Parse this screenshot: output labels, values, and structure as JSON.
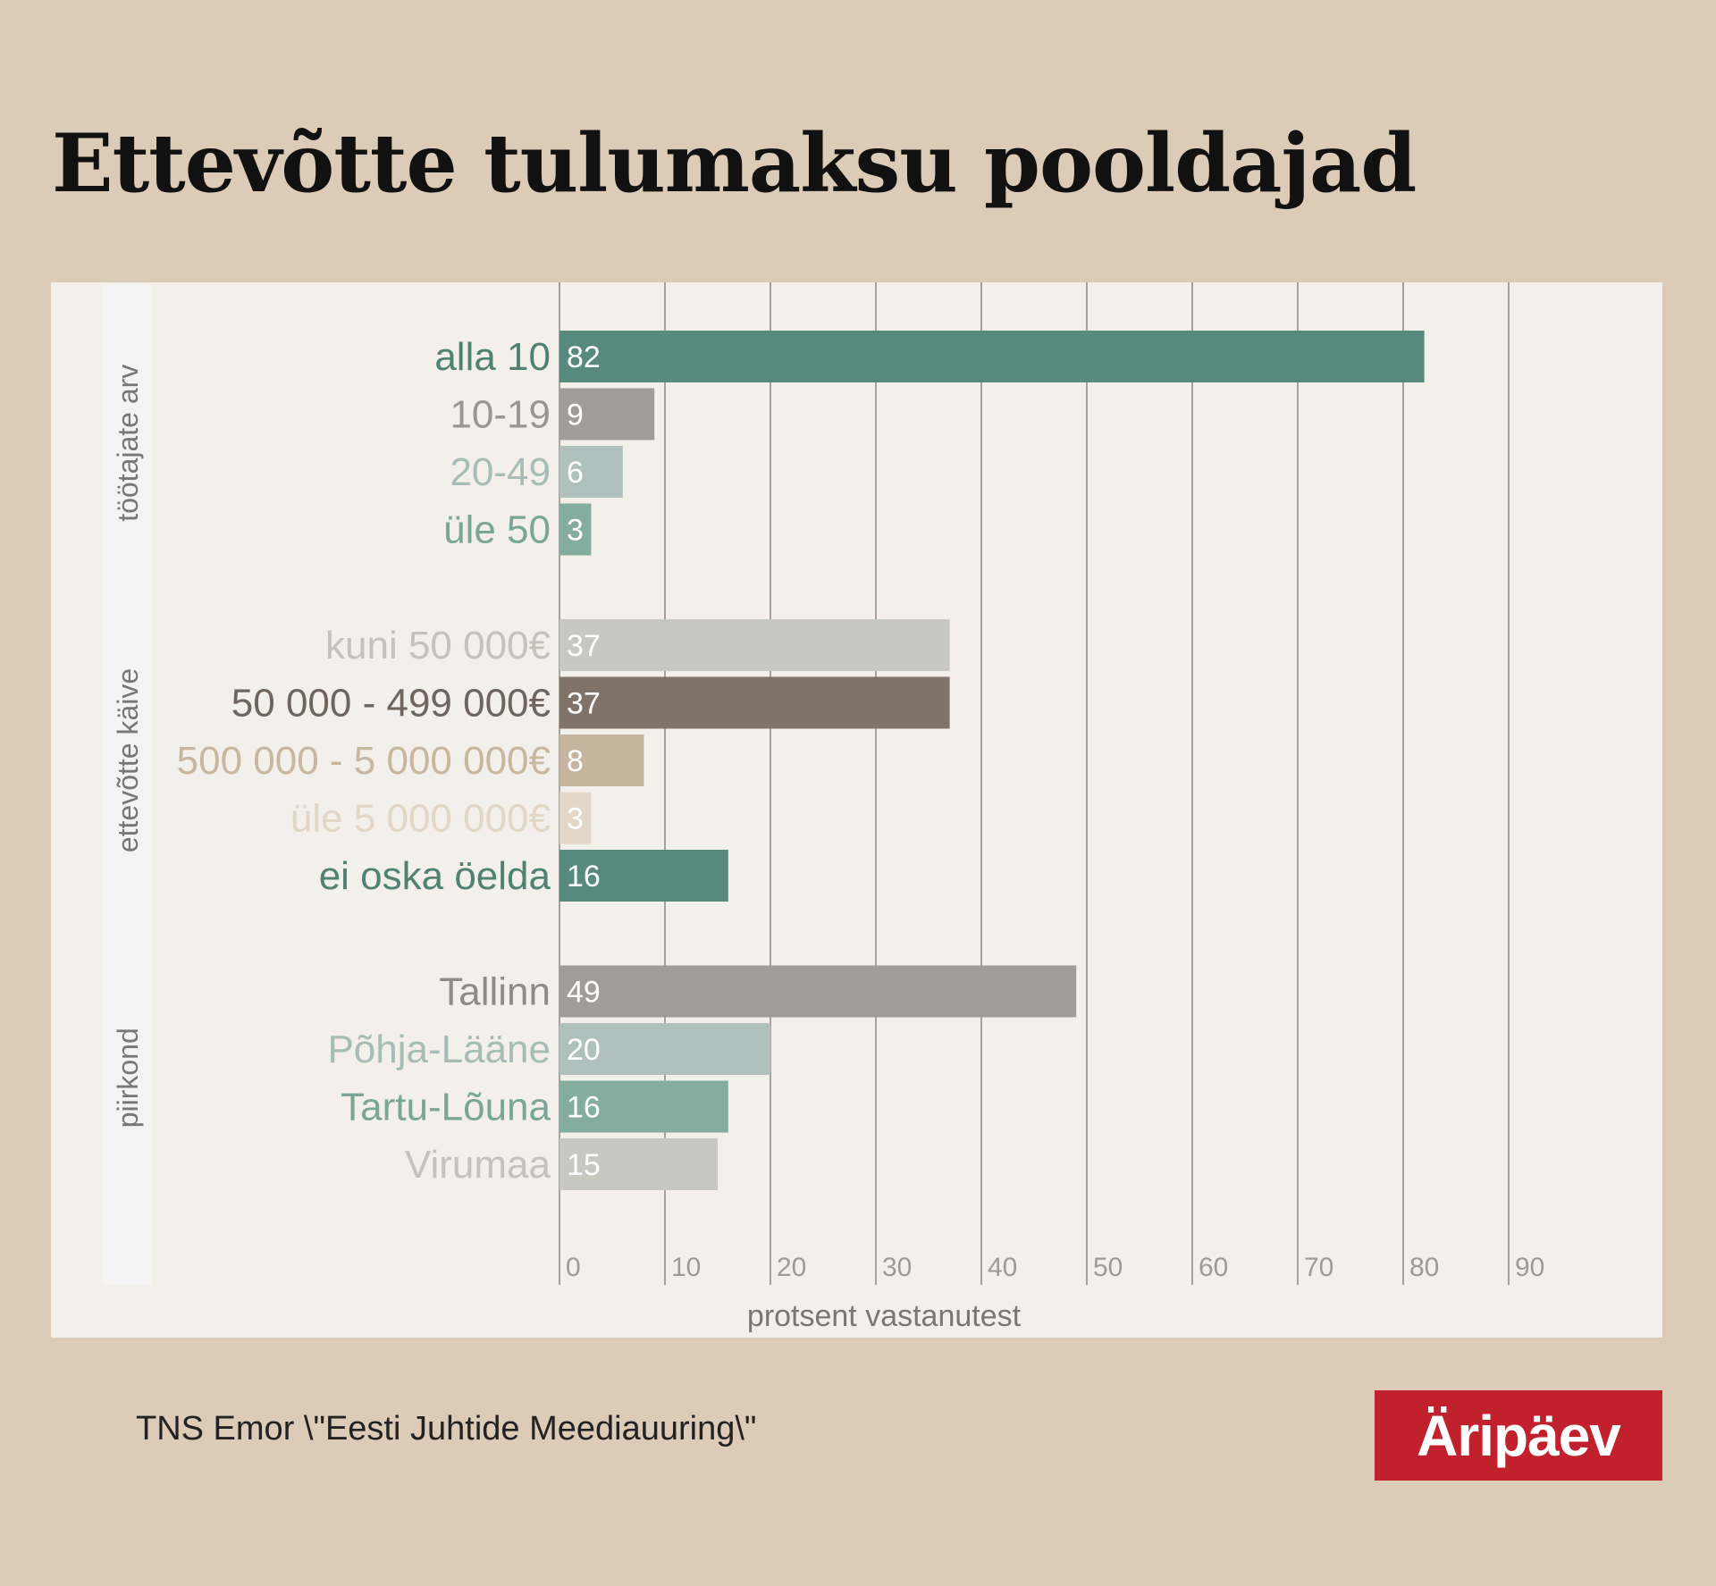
{
  "title": "Ettevõtte tulumaksu pooldajad",
  "source": "TNS Emor \\\"Eesti Juhtide Meediauuring\\\"",
  "logo_text": "Äripäev",
  "chart_data": {
    "type": "bar",
    "orientation": "horizontal",
    "xlabel": "protsent vastanutest",
    "xlim": [
      0,
      100
    ],
    "ticks": [
      0,
      10,
      20,
      30,
      40,
      50,
      60,
      70,
      80,
      90
    ],
    "grid": true,
    "groups": [
      {
        "name": "töötajate arv",
        "bars": [
          {
            "label": "alla 10",
            "value": 82,
            "color": "#578a7c",
            "label_color": "#4f8273"
          },
          {
            "label": "10-19",
            "value": 9,
            "color": "#a19c98",
            "label_color": "#9a9591"
          },
          {
            "label": "20-49",
            "value": 6,
            "color": "#b0c1bd",
            "label_color": "#a8bcb7"
          },
          {
            "label": "üle 50",
            "value": 3,
            "color": "#84ad9f",
            "label_color": "#7aa697"
          }
        ]
      },
      {
        "name": "ettevõtte käive",
        "bars": [
          {
            "label": "kuni 50 000€",
            "value": 37,
            "color": "#c7c8bf",
            "label_color": "#c3c3ba"
          },
          {
            "label": "50 000 - 499 000€",
            "value": 37,
            "color": "#80736a",
            "label_color": "#6f655d"
          },
          {
            "label": "500 000 - 5 000 000€",
            "value": 8,
            "color": "#c5b59f",
            "label_color": "#c8b7a0"
          },
          {
            "label": "üle 5 000 000€",
            "value": 3,
            "color": "#e3d7c9",
            "label_color": "#e2d6c7"
          },
          {
            "label": "ei oska öelda",
            "value": 16,
            "color": "#578a7c",
            "label_color": "#4f8273"
          }
        ]
      },
      {
        "name": "piirkond",
        "bars": [
          {
            "label": "Tallinn",
            "value": 49,
            "color": "#a19c98",
            "label_color": "#8f8a86"
          },
          {
            "label": "Põhja-Lääne",
            "value": 20,
            "color": "#b0c1bd",
            "label_color": "#a8bcb7"
          },
          {
            "label": "Tartu-Lõuna",
            "value": 16,
            "color": "#84ad9f",
            "label_color": "#7aa697"
          },
          {
            "label": "Virumaa",
            "value": 15,
            "color": "#c7c8bf",
            "label_color": "#c3c3ba"
          }
        ]
      }
    ]
  }
}
